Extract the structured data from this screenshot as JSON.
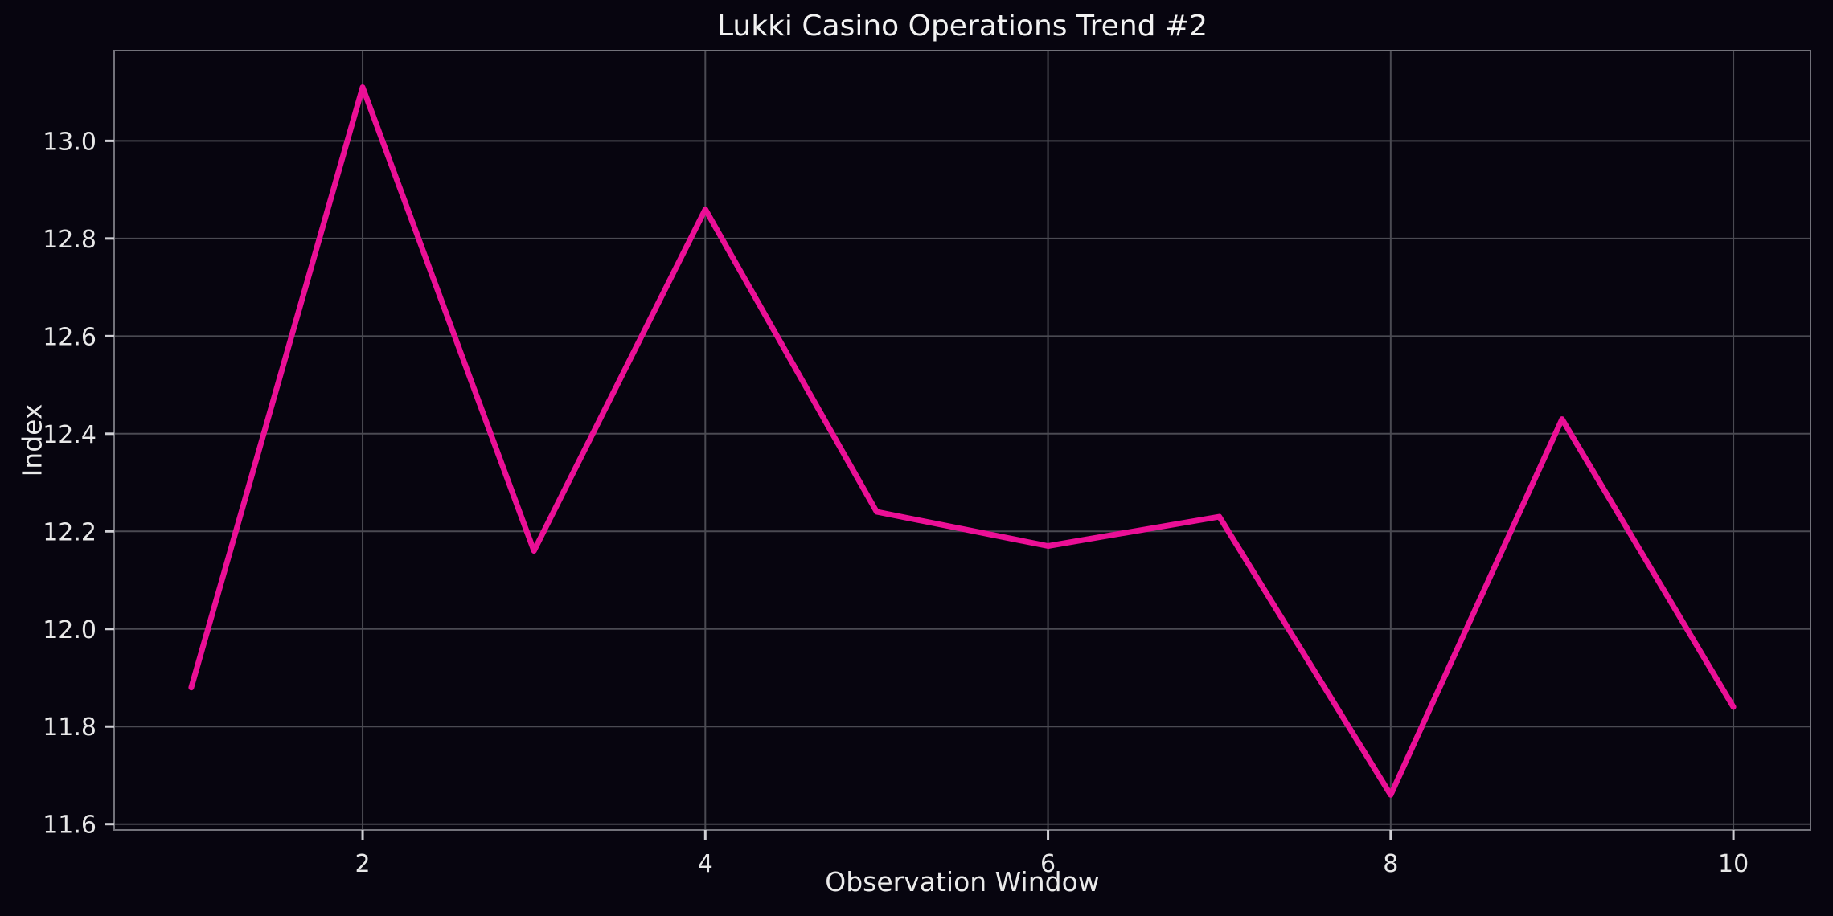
{
  "page": {
    "background": "#07050f"
  },
  "colors": {
    "background": "#07050f",
    "line": "#eb0f96",
    "grid": "#4a4a52",
    "spine": "#72727a",
    "tick": "#cfcfd4",
    "tick_label": "#e8e8e8",
    "text": "#f2f2f2"
  },
  "chart_data": {
    "type": "line",
    "title": "Lukki Casino Operations Trend #2",
    "xlabel": "Observation Window",
    "ylabel": "Index",
    "x": [
      1,
      2,
      3,
      4,
      5,
      6,
      7,
      8,
      9,
      10
    ],
    "series": [
      {
        "name": "Index",
        "color": "#eb0f96",
        "values": [
          11.88,
          13.11,
          12.16,
          12.86,
          12.24,
          12.17,
          12.23,
          11.66,
          12.43,
          11.84
        ]
      }
    ],
    "xlim": [
      0.55,
      10.45
    ],
    "ylim": [
      11.588,
      13.185
    ],
    "xticks": [
      2,
      4,
      6,
      8,
      10
    ],
    "yticks": [
      11.6,
      11.8,
      12.0,
      12.2,
      12.4,
      12.6,
      12.8,
      13.0
    ],
    "grid": true,
    "legend_position": "none"
  }
}
